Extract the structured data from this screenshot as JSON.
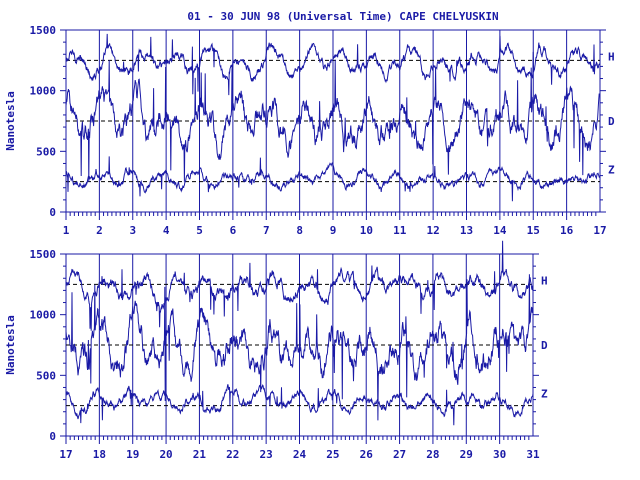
{
  "title": "01 - 30 JUN 98 (Universal Time) CAPE CHELYUSKIN",
  "colors": {
    "ink": "#1a1aa6",
    "background": "#ffffff"
  },
  "chart_data": [
    {
      "type": "line",
      "panel": "top",
      "ylabel": "Nanotesla",
      "ylim": [
        0,
        1500
      ],
      "yticks": [
        "0",
        "500",
        "1000",
        "1500"
      ],
      "xlim": [
        1,
        17
      ],
      "xticks": [
        "1",
        "2",
        "3",
        "4",
        "5",
        "6",
        "7",
        "8",
        "9",
        "10",
        "11",
        "12",
        "13",
        "14",
        "15",
        "16",
        "17"
      ],
      "reference_lines": [
        1250,
        750,
        250
      ],
      "series": [
        {
          "name": "H",
          "baseline": 1230,
          "amp": 110
        },
        {
          "name": "D",
          "baseline": 750,
          "amp": 220
        },
        {
          "name": "Z",
          "baseline": 270,
          "amp": 80
        }
      ]
    },
    {
      "type": "line",
      "panel": "bottom",
      "ylabel": "Nanotesla",
      "ylim": [
        0,
        1500
      ],
      "yticks": [
        "0",
        "500",
        "1000",
        "1500"
      ],
      "xlim": [
        17,
        31
      ],
      "xticks": [
        "17",
        "18",
        "19",
        "20",
        "21",
        "22",
        "23",
        "24",
        "25",
        "26",
        "27",
        "28",
        "29",
        "30",
        "31"
      ],
      "reference_lines": [
        1250,
        750,
        250
      ],
      "series": [
        {
          "name": "H",
          "baseline": 1220,
          "amp": 120
        },
        {
          "name": "D",
          "baseline": 720,
          "amp": 240
        },
        {
          "name": "Z",
          "baseline": 290,
          "amp": 90
        }
      ]
    }
  ]
}
